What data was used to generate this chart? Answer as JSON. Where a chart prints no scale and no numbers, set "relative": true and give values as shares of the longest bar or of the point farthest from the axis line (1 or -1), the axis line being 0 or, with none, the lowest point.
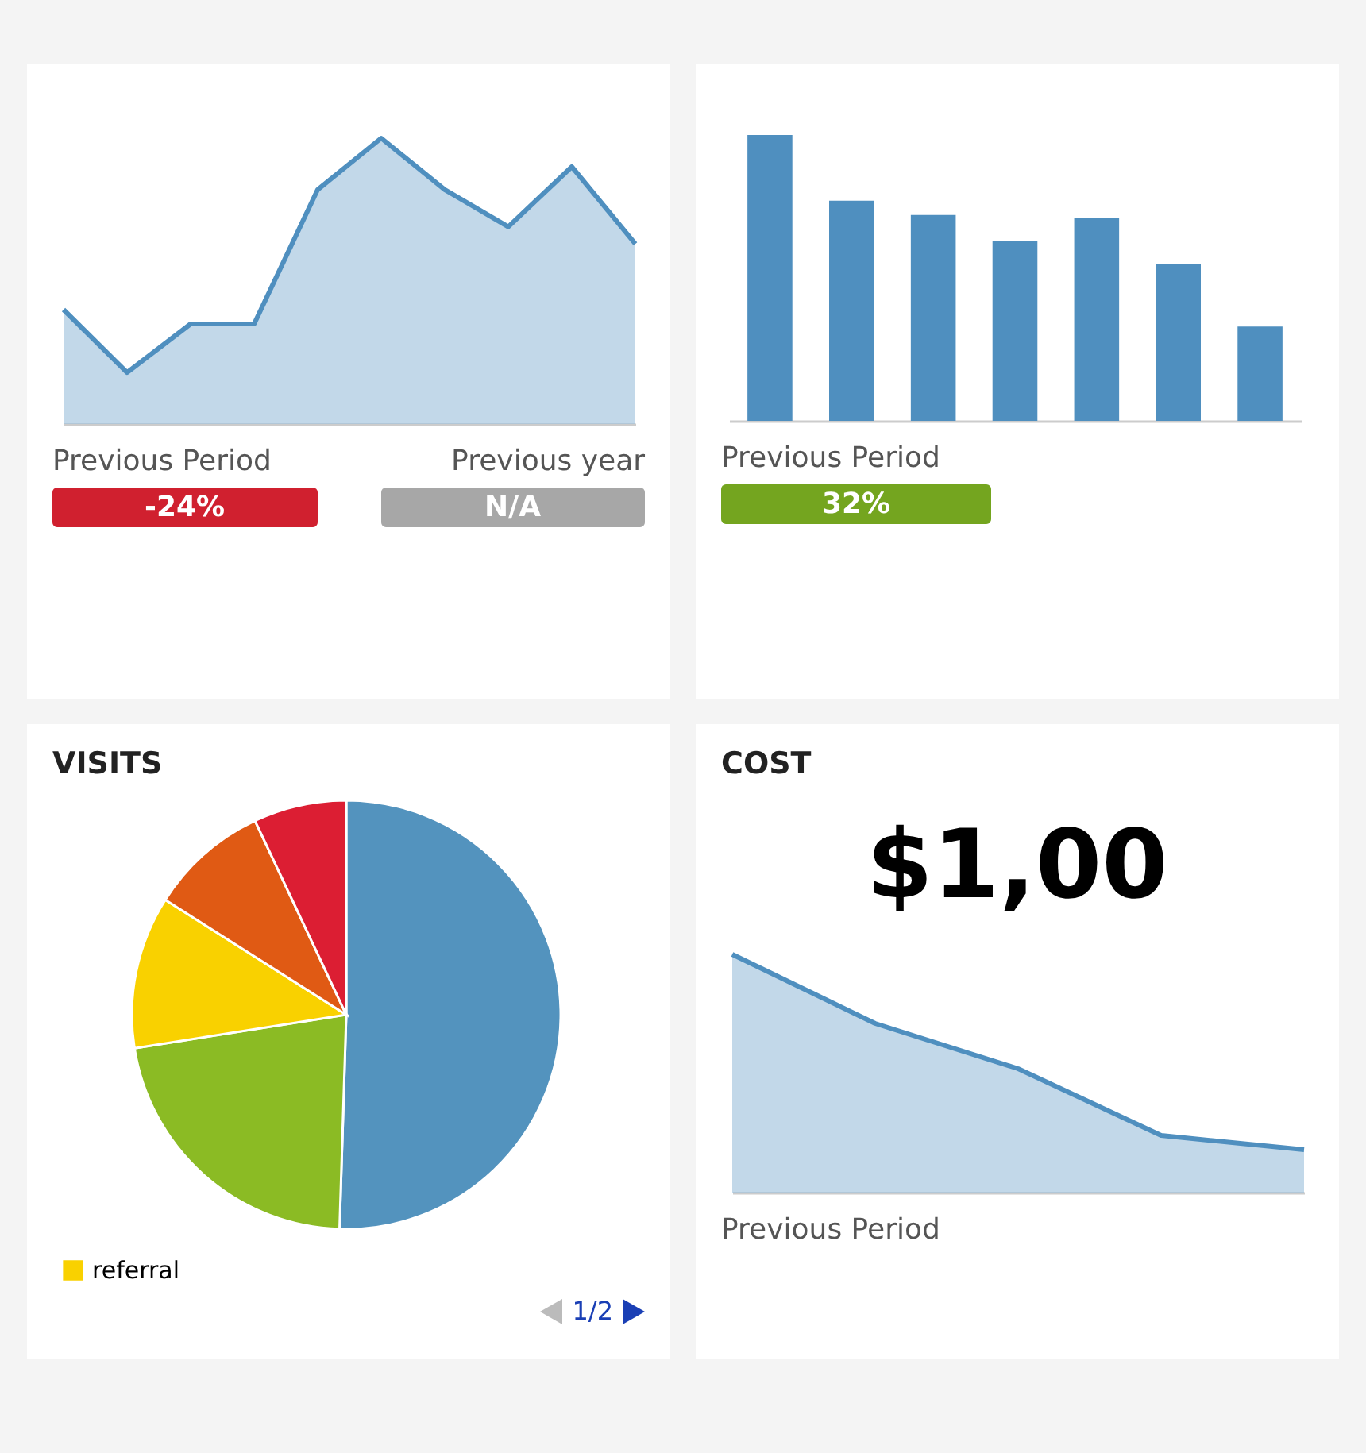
{
  "chart_data": [
    {
      "type": "area",
      "relative": true,
      "categories": [
        null,
        null,
        null,
        null,
        null,
        null,
        null,
        null,
        null,
        null
      ],
      "series": [
        {
          "color": "#4f8fbf",
          "values": [
            0.4,
            0.18,
            0.35,
            0.35,
            0.82,
            1,
            0.82,
            0.69,
            0.9,
            0.63
          ]
        }
      ],
      "annotations": [
        "Previous Period",
        "-24%",
        "Previous year",
        "N/A"
      ]
    },
    {
      "type": "bar",
      "relative": true,
      "categories": [
        null,
        null,
        null,
        null,
        null,
        null,
        null
      ],
      "values": [
        1,
        0.77,
        0.72,
        0.63,
        0.71,
        0.55,
        0.33
      ],
      "color": "#4f8fbf",
      "annotations": [
        "Previous Period",
        "32%"
      ]
    },
    {
      "type": "pie",
      "title": "VISITS",
      "categories": [
        null,
        null,
        "referral",
        null,
        null
      ],
      "values": [
        50.5,
        22,
        11.5,
        9,
        7
      ],
      "colors": [
        "#5393be",
        "#8bbb24",
        "#f9d100",
        "#e05a14",
        "#dc1e33"
      ],
      "legend": "bottom",
      "annotations": [
        "1/2"
      ]
    },
    {
      "type": "area",
      "title": "COST",
      "relative": true,
      "categories": [
        null,
        null,
        null,
        null,
        null
      ],
      "series": [
        {
          "color": "#4f8fbf",
          "values": [
            1,
            0.71,
            0.52,
            0.24,
            0.18
          ]
        }
      ],
      "annotations": [
        "$1,00",
        "Previous Period"
      ]
    }
  ]
}
